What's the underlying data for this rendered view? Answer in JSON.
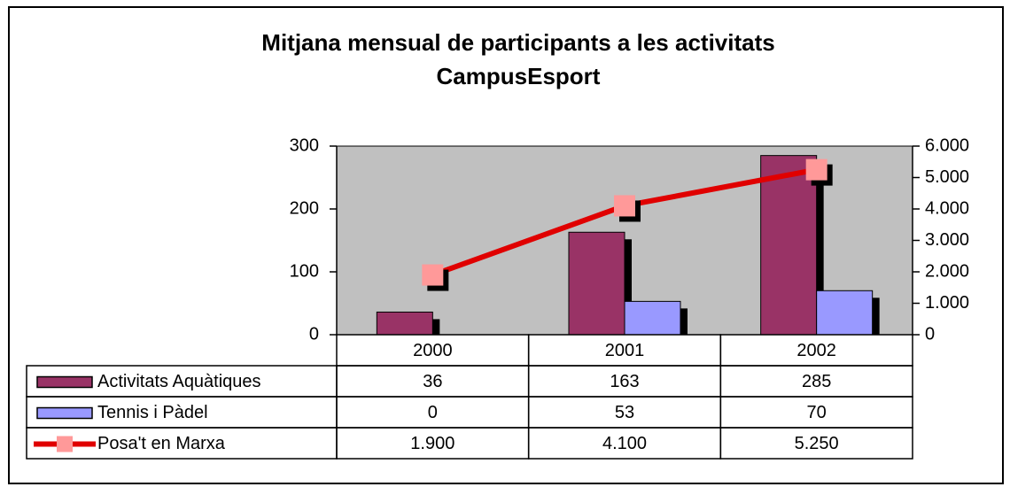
{
  "chart_data": {
    "type": "bar-line",
    "title": [
      "Mitjana mensual de participants a les activitats",
      "CampusEsport"
    ],
    "categories": [
      "2000",
      "2001",
      "2002"
    ],
    "series": [
      {
        "name": "Activitats Aquàtiques",
        "color": "#993366",
        "type": "bar",
        "values": [
          36,
          163,
          285
        ]
      },
      {
        "name": "Tennis i Pàdel",
        "color": "#9999ff",
        "type": "bar",
        "values": [
          0,
          53,
          70
        ]
      },
      {
        "name": "Posa't en Marxa",
        "color": "#e00000",
        "marker_color": "#ff9999",
        "type": "line",
        "axis": "y2",
        "values": [
          1900,
          4100,
          5250
        ],
        "value_labels": [
          "1.900",
          "4.100",
          "5.250"
        ]
      }
    ],
    "ylim": [
      0,
      300
    ],
    "yticks": [
      0,
      100,
      200,
      300
    ],
    "y2lim": [
      0,
      6000
    ],
    "y2ticks": [
      0,
      {
        "value": 1000,
        "label": "1.000"
      },
      {
        "value": 2000,
        "label": "2.000"
      },
      {
        "value": 3000,
        "label": "3.000"
      },
      {
        "value": 4000,
        "label": "4.000"
      },
      {
        "value": 5000,
        "label": "5.000"
      },
      {
        "value": 6000,
        "label": "6.000"
      }
    ],
    "plot_background": "#c0c0c0",
    "data_table": true
  }
}
